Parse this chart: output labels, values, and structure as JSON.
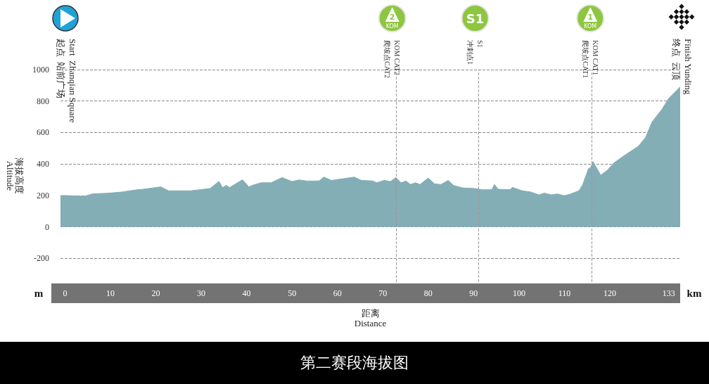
{
  "chart_data": {
    "type": "area",
    "title": "第二赛段海拔图",
    "xlabel": "距离\nDistance",
    "ylabel": "海拔高度\nAltitude",
    "x": [
      -1,
      0,
      4.3,
      6,
      9.6,
      12.5,
      15.4,
      17.3,
      21.1,
      22.8,
      27.7,
      32,
      33.9,
      34.7,
      35.5,
      36.2,
      39.1,
      40.5,
      41.5,
      43.2,
      45.4,
      47.8,
      50,
      51.6,
      53.3,
      56,
      57,
      58.7,
      63.7,
      65.3,
      67.7,
      68.7,
      70.3,
      71.7,
      72.9,
      74,
      75.1,
      76.1,
      77.2,
      78.2,
      80,
      81.4,
      82.8,
      84.4,
      85.6,
      87.5,
      90.3,
      91.9,
      94,
      94.6,
      95.4,
      98.1,
      98.5,
      100.7,
      102.6,
      104.4,
      105.6,
      107.1,
      108.5,
      109.9,
      111.1,
      113.2,
      114,
      115.3,
      115.8,
      116.3,
      116.9,
      118,
      119.4,
      120.9,
      123.5,
      126.3,
      127.9,
      129.3,
      131.5,
      133,
      135.5
    ],
    "values": [
      200,
      200,
      195,
      210,
      215,
      222,
      235,
      240,
      255,
      230,
      230,
      245,
      290,
      250,
      265,
      250,
      300,
      255,
      267,
      281,
      281,
      314,
      289,
      299,
      292,
      293,
      317,
      296,
      317,
      296,
      293,
      281,
      296,
      289,
      314,
      281,
      292,
      270,
      281,
      270,
      311,
      274,
      270,
      296,
      264,
      249,
      244,
      237,
      237,
      270,
      240,
      237,
      252,
      230,
      222,
      204,
      215,
      204,
      210,
      199,
      207,
      230,
      267,
      370,
      378,
      415,
      385,
      329,
      359,
      407,
      460,
      513,
      570,
      667,
      748,
      818,
      890
    ],
    "color": "#83aeb6",
    "marker": "none",
    "xlim": [
      -1,
      135.5
    ],
    "xticks": [
      0,
      10,
      20,
      30,
      40,
      50,
      60,
      70,
      80,
      90,
      100,
      110,
      120,
      133
    ],
    "ylim": [
      -350,
      1000
    ],
    "yticks": [
      -200,
      0,
      200,
      400,
      600,
      800,
      1000
    ],
    "grid": "y",
    "ref_lines": [
      {
        "axis": "x",
        "value": 73,
        "label": "KOM CAT2\n爬坡点CAT2",
        "color": "#999999",
        "line_style": "dashed"
      },
      {
        "axis": "x",
        "value": 91,
        "label": "S1\n冲刺点1",
        "color": "#999999",
        "line_style": "dashed"
      },
      {
        "axis": "x",
        "value": 116,
        "label": "KOM CAT1\n爬坡点CAT1",
        "color": "#999999",
        "line_style": "dashed"
      }
    ],
    "annotations": [
      "m",
      "km",
      "Start  Zhanqian Square\n起点  站前广场",
      "Finish Yunding\n终点  云顶",
      "2\nKOM",
      "S1",
      "1\nKOM"
    ]
  }
}
